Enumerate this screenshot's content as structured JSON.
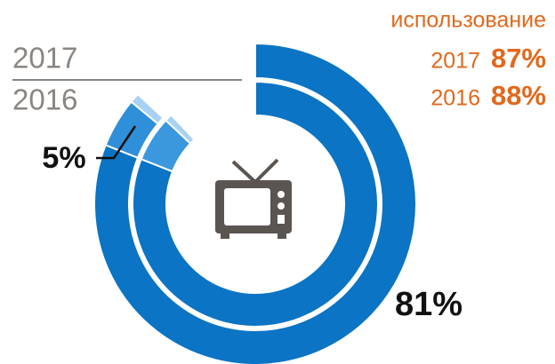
{
  "chart_data": {
    "type": "donut",
    "annotation": "использование",
    "totals": [
      {
        "label": "2017",
        "value": 87,
        "value_label": "87%"
      },
      {
        "label": "2016",
        "value": 88,
        "value_label": "88%"
      }
    ],
    "series": [
      {
        "name": "2017",
        "colors": [
          "#0b74c4",
          "#2f8fd8",
          "#a9d1f2"
        ],
        "values": [
          81,
          5,
          1
        ],
        "value_labels": [
          "81%",
          "5%",
          null
        ]
      },
      {
        "name": "2016",
        "colors": [
          "#0b74c4",
          "#3b98dd",
          "#a9d1f2"
        ],
        "values": [
          81,
          6,
          1
        ]
      }
    ]
  }
}
